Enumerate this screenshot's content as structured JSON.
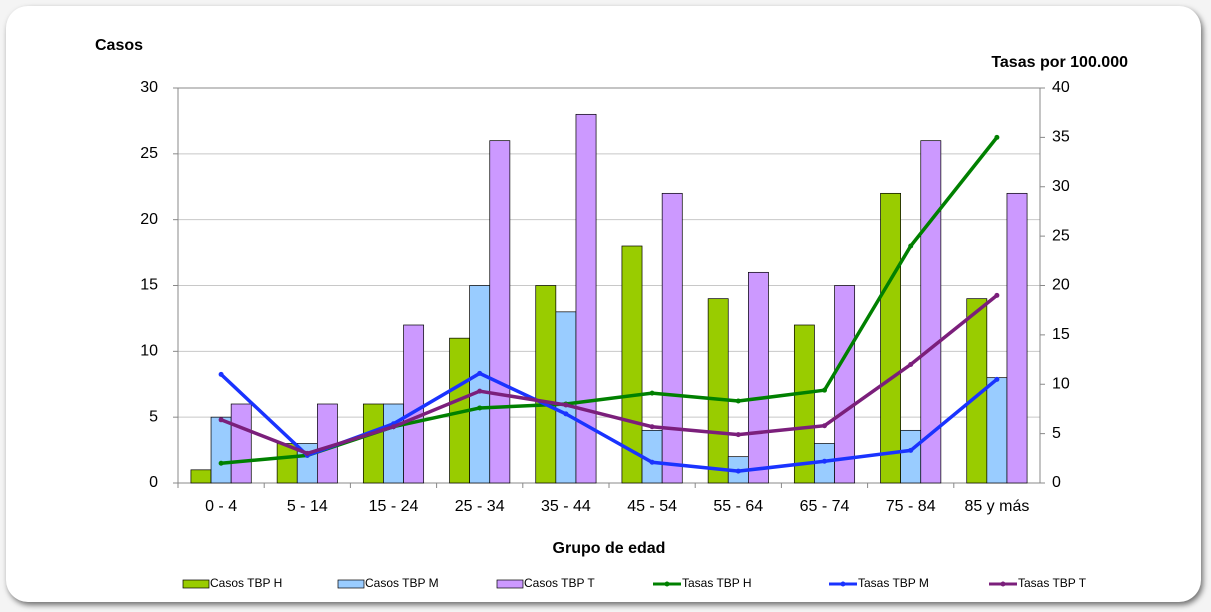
{
  "chart_data": {
    "type": "bar",
    "y_label": "Casos",
    "y2_label": "Tasas por 100.000",
    "x_label": "Grupo de edad",
    "categories": [
      "0 - 4",
      "5 - 14",
      "15 - 24",
      "25 - 34",
      "35 - 44",
      "45 - 54",
      "55 - 64",
      "65 - 74",
      "75 - 84",
      "85 y más"
    ],
    "series": [
      {
        "name": "Casos TBP H",
        "type": "bar",
        "color": "#99cc00",
        "values": [
          1,
          3,
          6,
          11,
          15,
          18,
          14,
          12,
          22,
          14
        ]
      },
      {
        "name": "Casos TBP M",
        "type": "bar",
        "color": "#99ccff",
        "values": [
          5,
          3,
          6,
          15,
          13,
          4,
          2,
          3,
          4,
          8
        ]
      },
      {
        "name": "Casos TBP T",
        "type": "bar",
        "color": "#cc99ff",
        "values": [
          6,
          6,
          12,
          26,
          28,
          22,
          16,
          15,
          26,
          22
        ]
      },
      {
        "name": "Tasas TBP H",
        "type": "line",
        "axis": "y2",
        "color": "#008000",
        "values": [
          2,
          2.8,
          5.7,
          7.6,
          8,
          9.1,
          8.3,
          9.4,
          24,
          35
        ]
      },
      {
        "name": "Tasas TBP M",
        "type": "line",
        "axis": "y2",
        "color": "#1a33ff",
        "values": [
          11,
          2.8,
          6,
          11.1,
          7,
          2.1,
          1.2,
          2.2,
          3.3,
          10.5
        ]
      },
      {
        "name": "Tasas TBP T",
        "type": "line",
        "axis": "y2",
        "color": "#7b1f7b",
        "values": [
          6.4,
          3,
          5.7,
          9.3,
          7.9,
          5.7,
          4.9,
          5.8,
          12,
          19
        ]
      }
    ],
    "ylim": [
      0,
      30
    ],
    "yticks": [
      0,
      5,
      10,
      15,
      20,
      25,
      30
    ],
    "y2lim": [
      0,
      40
    ],
    "y2ticks": [
      0,
      5,
      10,
      15,
      20,
      25,
      30,
      35,
      40
    ],
    "grid": true,
    "legend": "bottom"
  }
}
